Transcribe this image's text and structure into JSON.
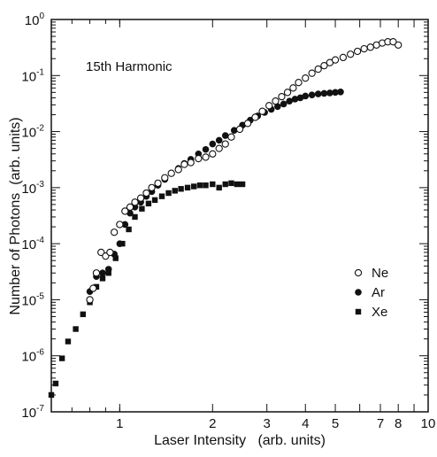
{
  "chart_data": {
    "type": "scatter",
    "title": "",
    "annotation": "15th Harmonic",
    "xlabel": "Laser Intensity   (arb. units)",
    "ylabel": "Number of Photons  (arb. units)",
    "x_scale": "log",
    "y_scale": "log",
    "xlim": [
      0.6,
      10
    ],
    "ylim": [
      1e-07,
      1
    ],
    "grid": false,
    "legend_position": "right",
    "x_ticks": [
      {
        "value": 1,
        "label": "1"
      },
      {
        "value": 2,
        "label": "2"
      },
      {
        "value": 3,
        "label": "3"
      },
      {
        "value": 4,
        "label": "4"
      },
      {
        "value": 5,
        "label": "5"
      },
      {
        "value": 7,
        "label": "7"
      },
      {
        "value": 8,
        "label": "8"
      },
      {
        "value": 10,
        "label": "10"
      }
    ],
    "y_ticks": [
      {
        "value": 1e-07,
        "base": "10",
        "exp": "-7"
      },
      {
        "value": 1e-06,
        "base": "10",
        "exp": "-6"
      },
      {
        "value": 1e-05,
        "base": "10",
        "exp": "-5"
      },
      {
        "value": 0.0001,
        "base": "10",
        "exp": "-4"
      },
      {
        "value": 0.001,
        "base": "10",
        "exp": "-3"
      },
      {
        "value": 0.01,
        "base": "10",
        "exp": "-2"
      },
      {
        "value": 0.1,
        "base": "10",
        "exp": "-1"
      },
      {
        "value": 1,
        "base": "10",
        "exp": "0"
      }
    ],
    "series": [
      {
        "name": "Ne",
        "marker": "open-circle",
        "points": [
          [
            0.8,
            1e-05
          ],
          [
            0.82,
            1.6e-05
          ],
          [
            0.84,
            3e-05
          ],
          [
            0.87,
            7e-05
          ],
          [
            0.9,
            6e-05
          ],
          [
            0.93,
            7e-05
          ],
          [
            0.96,
            0.00016
          ],
          [
            1.0,
            0.00022
          ],
          [
            1.04,
            0.00038
          ],
          [
            1.08,
            0.00045
          ],
          [
            1.12,
            0.00055
          ],
          [
            1.17,
            0.00065
          ],
          [
            1.22,
            0.0008
          ],
          [
            1.27,
            0.001
          ],
          [
            1.33,
            0.0012
          ],
          [
            1.4,
            0.0015
          ],
          [
            1.47,
            0.0018
          ],
          [
            1.55,
            0.0021
          ],
          [
            1.62,
            0.0026
          ],
          [
            1.7,
            0.0028
          ],
          [
            1.8,
            0.0033
          ],
          [
            1.9,
            0.0035
          ],
          [
            2.0,
            0.004
          ],
          [
            2.1,
            0.005
          ],
          [
            2.2,
            0.006
          ],
          [
            2.3,
            0.008
          ],
          [
            2.45,
            0.011
          ],
          [
            2.6,
            0.014
          ],
          [
            2.75,
            0.018
          ],
          [
            2.9,
            0.023
          ],
          [
            3.05,
            0.029
          ],
          [
            3.2,
            0.035
          ],
          [
            3.35,
            0.042
          ],
          [
            3.5,
            0.05
          ],
          [
            3.65,
            0.06
          ],
          [
            3.8,
            0.075
          ],
          [
            4.0,
            0.09
          ],
          [
            4.2,
            0.11
          ],
          [
            4.4,
            0.13
          ],
          [
            4.6,
            0.15
          ],
          [
            4.8,
            0.17
          ],
          [
            5.0,
            0.19
          ],
          [
            5.3,
            0.21
          ],
          [
            5.6,
            0.24
          ],
          [
            5.9,
            0.27
          ],
          [
            6.2,
            0.3
          ],
          [
            6.5,
            0.32
          ],
          [
            6.8,
            0.35
          ],
          [
            7.1,
            0.38
          ],
          [
            7.4,
            0.4
          ],
          [
            7.7,
            0.4
          ],
          [
            8.0,
            0.35
          ]
        ]
      },
      {
        "name": "Ar",
        "marker": "filled-circle",
        "points": [
          [
            0.8,
            1.4e-05
          ],
          [
            0.84,
            2.6e-05
          ],
          [
            0.88,
            3e-05
          ],
          [
            0.92,
            3.5e-05
          ],
          [
            0.96,
            6.5e-05
          ],
          [
            1.0,
            0.0001
          ],
          [
            1.04,
            0.00022
          ],
          [
            1.08,
            0.00035
          ],
          [
            1.12,
            0.00045
          ],
          [
            1.17,
            0.00055
          ],
          [
            1.22,
            0.0007
          ],
          [
            1.27,
            0.00085
          ],
          [
            1.33,
            0.0011
          ],
          [
            1.4,
            0.0014
          ],
          [
            1.47,
            0.0018
          ],
          [
            1.55,
            0.0022
          ],
          [
            1.62,
            0.0027
          ],
          [
            1.7,
            0.0032
          ],
          [
            1.8,
            0.004
          ],
          [
            1.9,
            0.0048
          ],
          [
            2.0,
            0.006
          ],
          [
            2.1,
            0.007
          ],
          [
            2.2,
            0.0085
          ],
          [
            2.35,
            0.0105
          ],
          [
            2.5,
            0.013
          ],
          [
            2.65,
            0.016
          ],
          [
            2.8,
            0.019
          ],
          [
            2.95,
            0.022
          ],
          [
            3.1,
            0.025
          ],
          [
            3.25,
            0.028
          ],
          [
            3.4,
            0.031
          ],
          [
            3.55,
            0.035
          ],
          [
            3.7,
            0.038
          ],
          [
            3.85,
            0.04
          ],
          [
            4.0,
            0.043
          ],
          [
            4.2,
            0.045
          ],
          [
            4.4,
            0.047
          ],
          [
            4.6,
            0.048
          ],
          [
            4.8,
            0.049
          ],
          [
            5.0,
            0.05
          ],
          [
            5.2,
            0.051
          ]
        ]
      },
      {
        "name": "Xe",
        "marker": "filled-square",
        "points": [
          [
            0.6,
            2e-07
          ],
          [
            0.62,
            3.2e-07
          ],
          [
            0.65,
            9e-07
          ],
          [
            0.68,
            1.8e-06
          ],
          [
            0.72,
            3e-06
          ],
          [
            0.76,
            5.5e-06
          ],
          [
            0.8,
            9e-06
          ],
          [
            0.84,
            1.7e-05
          ],
          [
            0.88,
            2.4e-05
          ],
          [
            0.92,
            3e-05
          ],
          [
            0.97,
            5.5e-05
          ],
          [
            1.02,
            0.0001
          ],
          [
            1.07,
            0.00018
          ],
          [
            1.12,
            0.0003
          ],
          [
            1.18,
            0.00042
          ],
          [
            1.24,
            0.00052
          ],
          [
            1.3,
            0.0006
          ],
          [
            1.37,
            0.0007
          ],
          [
            1.44,
            0.0008
          ],
          [
            1.51,
            0.00088
          ],
          [
            1.58,
            0.00095
          ],
          [
            1.66,
            0.001
          ],
          [
            1.74,
            0.00105
          ],
          [
            1.82,
            0.0011
          ],
          [
            1.9,
            0.0011
          ],
          [
            2.0,
            0.00115
          ],
          [
            2.1,
            0.001
          ],
          [
            2.2,
            0.00115
          ],
          [
            2.3,
            0.0012
          ],
          [
            2.4,
            0.00115
          ],
          [
            2.5,
            0.00115
          ]
        ]
      }
    ]
  }
}
